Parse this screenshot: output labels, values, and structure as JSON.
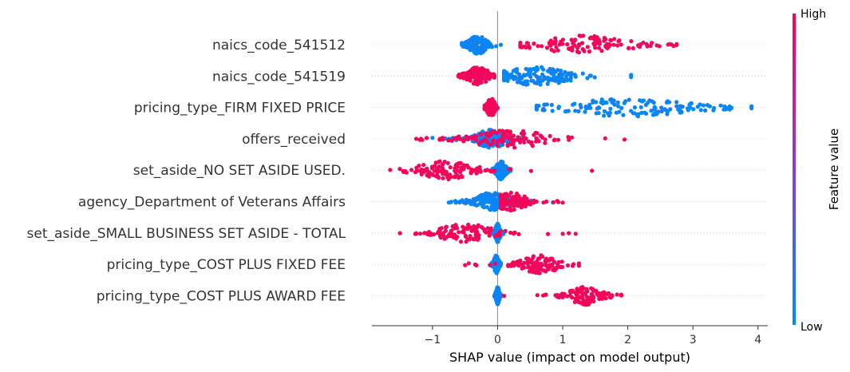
{
  "chart_data": {
    "type": "scatter",
    "title": "",
    "xlabel": "SHAP value (impact on model output)",
    "x_ticks": [
      -1,
      0,
      1,
      2,
      3,
      4
    ],
    "x_tick_labels": [
      "−1",
      "0",
      "1",
      "2",
      "3",
      "4"
    ],
    "xlim": [
      -1.93,
      4.15
    ],
    "colorbar": {
      "title": "Feature value",
      "high_label": "High",
      "low_label": "Low",
      "high_color": "#ff0052",
      "low_color": "#008bfb"
    },
    "grid": false,
    "features": [
      {
        "name": "naics_code_541512",
        "high": {
          "min": 0.35,
          "max": 2.75,
          "center": 1.3,
          "spread": 0.55
        },
        "low": {
          "min": -0.55,
          "max": 0.05,
          "center": -0.3,
          "spread": 0.12
        }
      },
      {
        "name": "naics_code_541519",
        "high": {
          "min": -0.6,
          "max": -0.05,
          "center": -0.3,
          "spread": 0.14
        },
        "low": {
          "min": 0.1,
          "max": 2.05,
          "center": 0.6,
          "spread": 0.45
        }
      },
      {
        "name": "pricing_type_FIRM FIXED PRICE",
        "high": {
          "min": -0.2,
          "max": 0.0,
          "center": -0.1,
          "spread": 0.05
        },
        "low": {
          "min": 0.6,
          "max": 3.9,
          "center": 2.0,
          "spread": 0.8
        }
      },
      {
        "name": "offers_received",
        "high": {
          "min": -1.25,
          "max": 1.95,
          "center": 0.2,
          "spread": 0.45
        },
        "low": {
          "min": -1.0,
          "max": 0.4,
          "center": -0.1,
          "spread": 0.2
        }
      },
      {
        "name": "set_aside_NO SET ASIDE USED.",
        "high": {
          "min": -1.65,
          "max": 1.45,
          "center": -0.8,
          "spread": 0.35
        },
        "low": {
          "min": -0.1,
          "max": 0.2,
          "center": 0.05,
          "spread": 0.06
        }
      },
      {
        "name": "agency_Department of Veterans Affairs",
        "high": {
          "min": 0.05,
          "max": 1.0,
          "center": 0.2,
          "spread": 0.2
        },
        "low": {
          "min": -0.75,
          "max": 0.85,
          "center": -0.1,
          "spread": 0.18
        }
      },
      {
        "name": "set_aside_SMALL BUSINESS SET ASIDE - TOTAL",
        "high": {
          "min": -1.5,
          "max": 1.2,
          "center": -0.5,
          "spread": 0.35
        },
        "low": {
          "min": -0.1,
          "max": 0.1,
          "center": 0.0,
          "spread": 0.03
        }
      },
      {
        "name": "pricing_type_COST PLUS FIXED FEE",
        "high": {
          "min": -0.5,
          "max": 1.25,
          "center": 0.65,
          "spread": 0.25
        },
        "low": {
          "min": -0.1,
          "max": 0.05,
          "center": -0.02,
          "spread": 0.03
        }
      },
      {
        "name": "pricing_type_COST PLUS AWARD FEE",
        "high": {
          "min": 0.1,
          "max": 1.9,
          "center": 1.35,
          "spread": 0.2
        },
        "low": {
          "min": -0.05,
          "max": 0.05,
          "center": 0.0,
          "spread": 0.02
        }
      }
    ]
  }
}
